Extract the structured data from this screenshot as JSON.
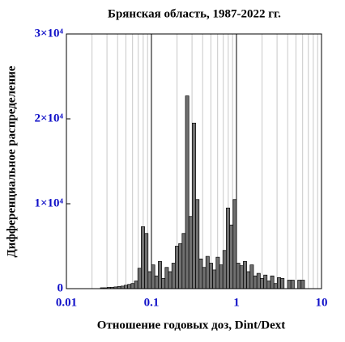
{
  "chart_data": {
    "type": "histogram",
    "title": "Брянская область, 1987-2022 гг.",
    "xlabel": "Отношение годовых доз, Dint/Dext",
    "ylabel": "Дифференциальное распределение",
    "xscale": "log",
    "bins": [
      0.02512,
      0.02754,
      0.0302,
      0.03311,
      0.03631,
      0.03981,
      0.04365,
      0.04786,
      0.05248,
      0.05754,
      0.0631,
      0.06918,
      0.07586,
      0.08318,
      0.0912,
      0.1,
      0.1096,
      0.1202,
      0.1318,
      0.1445,
      0.1585,
      0.1738,
      0.1905,
      0.2089,
      0.2291,
      0.2512,
      0.2754,
      0.302,
      0.3311,
      0.3631,
      0.3981,
      0.4365,
      0.4786,
      0.5248,
      0.5754,
      0.631,
      0.6918,
      0.7586,
      0.8318,
      0.912,
      1,
      1.096,
      1.202,
      1.318,
      1.445,
      1.585,
      1.738,
      1.905,
      2.089,
      2.291,
      2.512,
      2.754,
      3.02,
      3.311,
      3.631,
      3.981,
      4.365,
      4.786,
      5.248,
      5.754,
      6.31
    ],
    "values": [
      100,
      100,
      150,
      150,
      200,
      250,
      300,
      400,
      500,
      600,
      900,
      2400,
      7300,
      6500,
      2000,
      2800,
      1500,
      3200,
      1200,
      2500,
      2000,
      3000,
      5000,
      5300,
      6500,
      22700,
      8500,
      19500,
      10500,
      3500,
      2500,
      3800,
      3000,
      2200,
      3700,
      2800,
      4500,
      9500,
      7500,
      10500,
      3000,
      2700,
      3200,
      2000,
      2800,
      1500,
      1800,
      1200,
      1600,
      900,
      1500,
      600,
      1300,
      1200,
      0,
      1000,
      1000,
      0,
      1000,
      1000
    ],
    "color": "#707070",
    "xlim": [
      0.01,
      10
    ],
    "xticks": [
      0.01,
      0.1,
      1,
      10
    ],
    "ylim": [
      0,
      30000
    ],
    "yticks": [
      0,
      {
        "value": 10000,
        "label": "1×10⁴"
      },
      {
        "value": 20000,
        "label": "2×10⁴"
      },
      {
        "value": 30000,
        "label": "3×10⁴"
      }
    ],
    "grid": true
  }
}
